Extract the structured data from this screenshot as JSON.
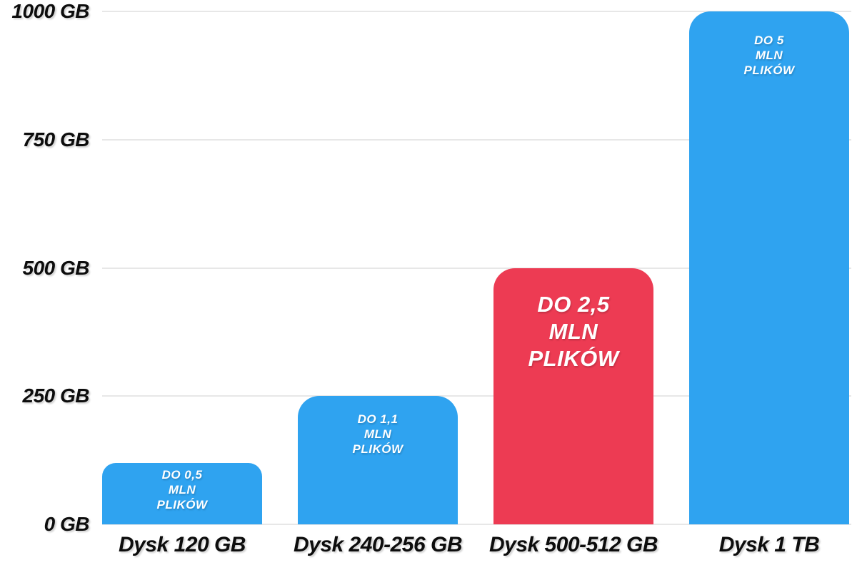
{
  "chart_data": {
    "type": "bar",
    "title": "",
    "xlabel": "",
    "ylabel": "",
    "unit": "GB",
    "ylim": [
      0,
      1000
    ],
    "grid": true,
    "legend": false,
    "categories": [
      "Dysk 120 GB",
      "Dysk 240-256 GB",
      "Dysk 500-512 GB",
      "Dysk 1 TB"
    ],
    "values": [
      120,
      250,
      500,
      1000
    ],
    "yticks": [
      {
        "value": 1000,
        "label": "1000 GB"
      },
      {
        "value": 750,
        "label": "750 GB"
      },
      {
        "value": 500,
        "label": "500 GB"
      },
      {
        "value": 250,
        "label": "250 GB"
      },
      {
        "value": 0,
        "label": "0 GB"
      }
    ],
    "bar_annotations": [
      {
        "lines": [
          "DO 0,5",
          "MLN",
          "PLIKÓW"
        ],
        "emphasis": false
      },
      {
        "lines": [
          "DO 1,1",
          "MLN",
          "PLIKÓW"
        ],
        "emphasis": false
      },
      {
        "lines": [
          "DO 2,5",
          "MLN",
          "PLIKÓW"
        ],
        "emphasis": true
      },
      {
        "lines": [
          "DO 5",
          "MLN",
          "PLIKÓW"
        ],
        "emphasis": false
      }
    ],
    "bar_colors": [
      "#2FA3F0",
      "#2FA3F0",
      "#ED3B53",
      "#2FA3F0"
    ],
    "highlight_index": 2
  },
  "colors": {
    "bar_blue": "#2FA3F0",
    "bar_red": "#ED3B53",
    "gridline": "#E7E7E7",
    "axis_text": "#0D0D0D",
    "bar_text": "#FFFFFF",
    "background": "#FFFFFF"
  }
}
